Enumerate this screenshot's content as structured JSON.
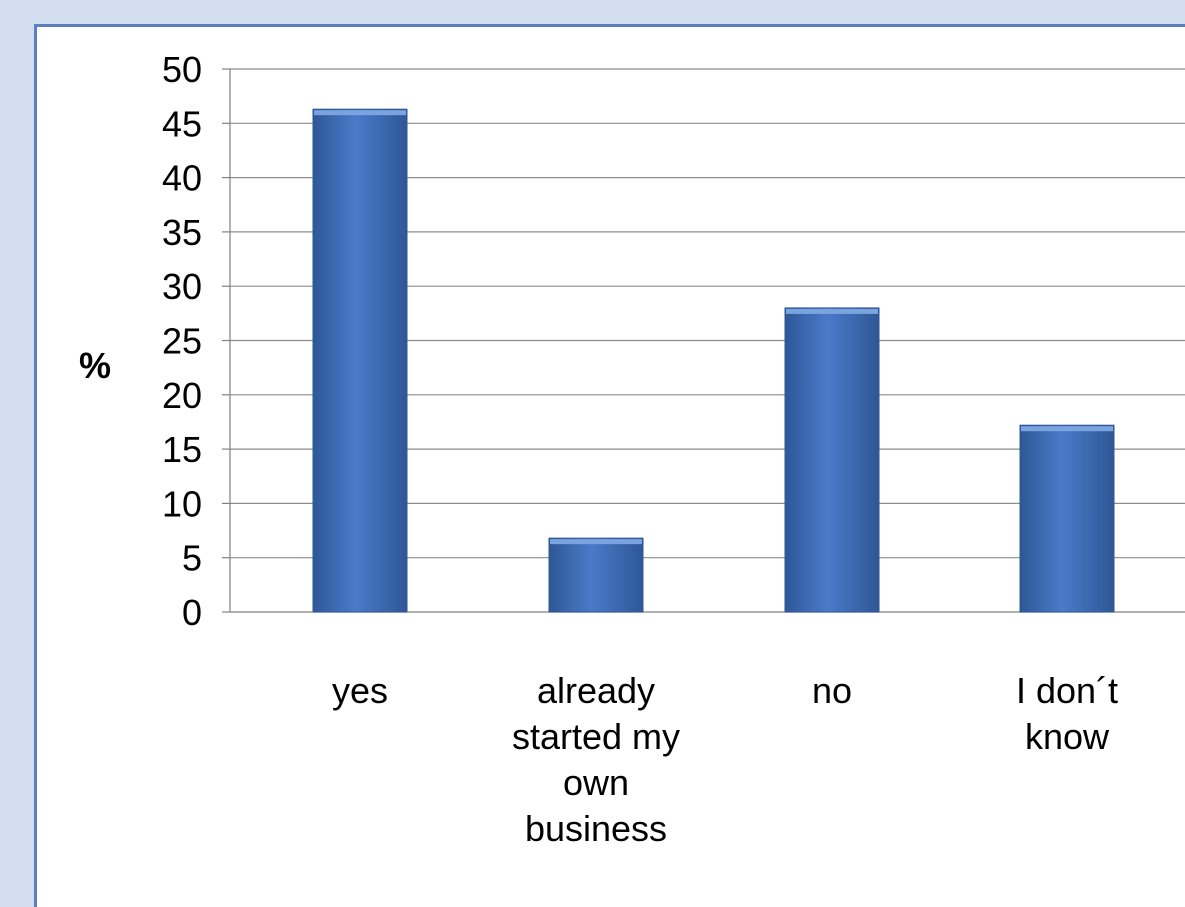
{
  "chart_data": {
    "type": "bar",
    "categories": [
      "yes",
      "already started my own business",
      "no",
      "I don´t know"
    ],
    "category_lines": [
      [
        "yes"
      ],
      [
        "already",
        "started my",
        "own",
        "business"
      ],
      [
        "no"
      ],
      [
        "I don´t",
        "know"
      ]
    ],
    "values": [
      46.3,
      6.8,
      28.0,
      17.2
    ],
    "title": "",
    "xlabel": "",
    "ylabel": "%",
    "ylim": [
      0,
      50
    ],
    "yticks": [
      "0",
      "5",
      "10",
      "15",
      "20",
      "25",
      "30",
      "35",
      "40",
      "45",
      "50"
    ],
    "grid": true,
    "legend": "none",
    "bar_color": "#4a7ac9",
    "bar_color_dark": "#2e5796"
  }
}
